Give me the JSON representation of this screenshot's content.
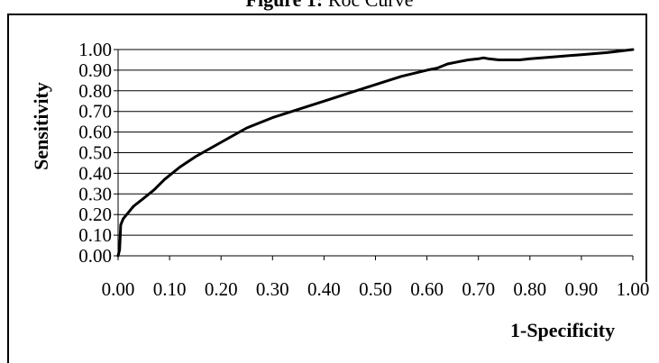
{
  "chart_data": {
    "type": "line",
    "title_prefix": "Figure 1:",
    "title_text": "Roc Curve",
    "xlabel": "1-Specificity",
    "ylabel": "Sensitivity",
    "xlim": [
      0,
      1
    ],
    "ylim": [
      0,
      1
    ],
    "x_ticks": [
      "0.00",
      "0.10",
      "0.20",
      "0.30",
      "0.40",
      "0.50",
      "0.60",
      "0.70",
      "0.80",
      "0.90",
      "1.00"
    ],
    "y_ticks": [
      "0.00",
      "0.10",
      "0.20",
      "0.30",
      "0.40",
      "0.50",
      "0.60",
      "0.70",
      "0.80",
      "0.90",
      "1.00"
    ],
    "grid": "horizontal",
    "legend": "none",
    "line_color": "#000000",
    "series": [
      {
        "x": [
          0.0,
          0.003,
          0.005,
          0.01,
          0.02,
          0.03,
          0.05,
          0.07,
          0.09,
          0.1,
          0.12,
          0.15,
          0.2,
          0.25,
          0.3,
          0.35,
          0.4,
          0.45,
          0.5,
          0.55,
          0.6,
          0.62,
          0.64,
          0.66,
          0.68,
          0.7,
          0.71,
          0.72,
          0.74,
          0.76,
          0.78,
          0.8,
          0.85,
          0.9,
          0.95,
          1.0
        ],
        "y": [
          0.0,
          0.03,
          0.15,
          0.18,
          0.21,
          0.24,
          0.28,
          0.32,
          0.37,
          0.39,
          0.43,
          0.48,
          0.55,
          0.62,
          0.67,
          0.71,
          0.75,
          0.79,
          0.83,
          0.87,
          0.9,
          0.91,
          0.93,
          0.94,
          0.95,
          0.955,
          0.96,
          0.955,
          0.95,
          0.95,
          0.95,
          0.955,
          0.965,
          0.975,
          0.985,
          1.0
        ]
      }
    ]
  }
}
